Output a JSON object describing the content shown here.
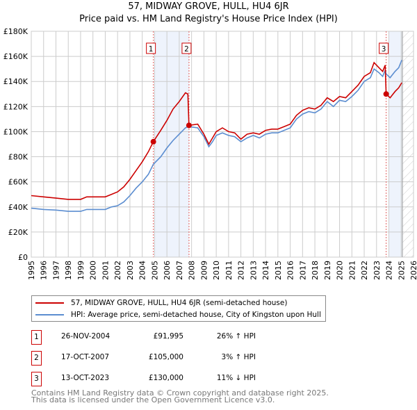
{
  "title_line1": "57, MIDWAY GROVE, HULL, HU4 6JR",
  "title_line2": "Price paid vs. HM Land Registry's House Price Index (HPI)",
  "legend": [
    {
      "label": "57, MIDWAY GROVE, HULL, HU4 6JR (semi-detached house)",
      "color": "#cc0000"
    },
    {
      "label": "HPI: Average price, semi-detached house, City of Kingston upon Hull",
      "color": "#5b8dd0"
    }
  ],
  "transactions": [
    {
      "num": "1",
      "date": "26-NOV-2004",
      "price": "£91,995",
      "pct": "26% ↑ HPI"
    },
    {
      "num": "2",
      "date": "17-OCT-2007",
      "price": "£105,000",
      "pct": "3% ↑ HPI"
    },
    {
      "num": "3",
      "date": "13-OCT-2023",
      "price": "£130,000",
      "pct": "11% ↓ HPI"
    }
  ],
  "footer_line1": "Contains HM Land Registry data © Crown copyright and database right 2025.",
  "footer_line2": "This data is licensed under the Open Government Licence v3.0.",
  "chart_data": {
    "type": "line",
    "title": "57, MIDWAY GROVE, HULL, HU4 6JR — Price paid vs. HM Land Registry's House Price Index (HPI)",
    "xlim": [
      1995,
      2026
    ],
    "ylim": [
      0,
      180000
    ],
    "x_ticks": [
      1995,
      1996,
      1997,
      1998,
      1999,
      2000,
      2001,
      2002,
      2003,
      2004,
      2005,
      2006,
      2007,
      2008,
      2009,
      2010,
      2011,
      2012,
      2013,
      2014,
      2015,
      2016,
      2017,
      2018,
      2019,
      2020,
      2021,
      2022,
      2023,
      2024,
      2025,
      2026
    ],
    "y_ticks": [
      {
        "v": 0,
        "label": "£0"
      },
      {
        "v": 20000,
        "label": "£20K"
      },
      {
        "v": 40000,
        "label": "£40K"
      },
      {
        "v": 60000,
        "label": "£60K"
      },
      {
        "v": 80000,
        "label": "£80K"
      },
      {
        "v": 100000,
        "label": "£100K"
      },
      {
        "v": 120000,
        "label": "£120K"
      },
      {
        "v": 140000,
        "label": "£140K"
      },
      {
        "v": 160000,
        "label": "£160K"
      },
      {
        "v": 180000,
        "label": "£180K"
      }
    ],
    "grid": true,
    "shaded_ranges": [
      [
        2005.0,
        2007.8
      ],
      [
        2024.0,
        2025.1
      ]
    ],
    "hatched_range": [
      2025.1,
      2026
    ],
    "sales": [
      {
        "label": "1",
        "x": 2004.9,
        "y": 91995
      },
      {
        "label": "2",
        "x": 2007.79,
        "y": 105000
      },
      {
        "label": "3",
        "x": 2023.78,
        "y": 130000
      }
    ],
    "x": [
      1995,
      1996,
      1997,
      1998,
      1999,
      1999.5,
      2000,
      2001,
      2001.5,
      2002,
      2002.5,
      2003,
      2003.5,
      2004,
      2004.5,
      2004.9,
      2005.5,
      2006,
      2006.5,
      2007,
      2007.5,
      2007.7,
      2007.79,
      2008.5,
      2009,
      2009.4,
      2009.7,
      2010,
      2010.5,
      2011,
      2011.5,
      2012,
      2012.5,
      2013,
      2013.5,
      2014,
      2014.5,
      2015,
      2015.5,
      2016,
      2016.5,
      2017,
      2017.5,
      2018,
      2018.5,
      2019,
      2019.5,
      2020,
      2020.5,
      2021,
      2021.5,
      2022,
      2022.5,
      2022.8,
      2023.2,
      2023.5,
      2023.7,
      2023.78,
      2024.1,
      2024.5,
      2024.8,
      2025.05
    ],
    "series": [
      {
        "name": "57, MIDWAY GROVE, HULL, HU4 6JR (semi-detached house)",
        "color": "#cc0000",
        "values": [
          49000,
          48000,
          47000,
          46000,
          46000,
          48000,
          48000,
          48000,
          50000,
          52000,
          56000,
          62000,
          69000,
          76000,
          84000,
          92000,
          101000,
          109000,
          118000,
          124000,
          131000,
          130000,
          105000,
          106000,
          98000,
          90000,
          95000,
          100000,
          103000,
          100000,
          99000,
          94000,
          98000,
          99000,
          98000,
          101000,
          102000,
          102000,
          104000,
          106000,
          113000,
          117000,
          119000,
          118000,
          121000,
          127000,
          124000,
          128000,
          127000,
          132000,
          137000,
          144000,
          147000,
          155000,
          151000,
          148000,
          153000,
          130000,
          127000,
          132000,
          135000,
          139000
        ]
      },
      {
        "name": "HPI: Average price, semi-detached house, City of Kingston upon Hull",
        "color": "#5b8dd0",
        "values": [
          39000,
          38000,
          37500,
          36500,
          36500,
          38000,
          38000,
          38000,
          40000,
          41000,
          44000,
          49000,
          55000,
          60000,
          66000,
          74000,
          80000,
          87000,
          93000,
          98000,
          103000,
          104000,
          104000,
          103000,
          96000,
          88000,
          92000,
          97000,
          99000,
          97000,
          96000,
          92000,
          95000,
          97000,
          95000,
          98000,
          99000,
          99000,
          101000,
          103000,
          110000,
          114000,
          116000,
          115000,
          118000,
          124000,
          120000,
          125000,
          124000,
          128000,
          133000,
          140000,
          143000,
          150000,
          147000,
          144000,
          149000,
          146000,
          143000,
          148000,
          151000,
          157000
        ]
      }
    ]
  }
}
